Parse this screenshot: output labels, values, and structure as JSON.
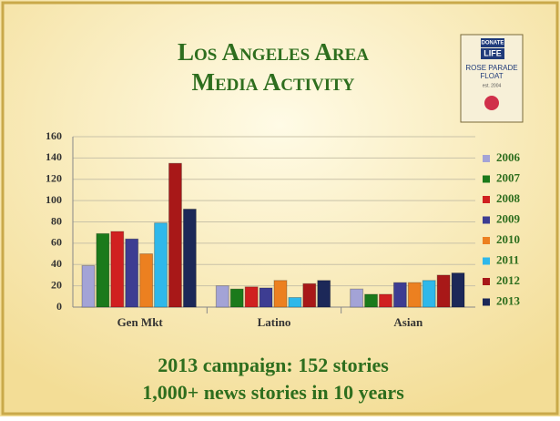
{
  "chart_data": {
    "type": "bar",
    "title": [
      "Los Angeles Area",
      "Media Activity"
    ],
    "categories": [
      "Gen Mkt",
      "Latino",
      "Asian"
    ],
    "series": [
      {
        "name": "2006",
        "color": "#a3a3d6",
        "values": [
          39,
          20,
          17
        ]
      },
      {
        "name": "2007",
        "color": "#1b7a1b",
        "values": [
          69,
          17,
          12
        ]
      },
      {
        "name": "2008",
        "color": "#d02020",
        "values": [
          71,
          19,
          12
        ]
      },
      {
        "name": "2009",
        "color": "#3d3d92",
        "values": [
          64,
          18,
          23
        ]
      },
      {
        "name": "2010",
        "color": "#ec8020",
        "values": [
          50,
          25,
          23
        ]
      },
      {
        "name": "2011",
        "color": "#2fb8ea",
        "values": [
          79,
          9,
          25
        ]
      },
      {
        "name": "2012",
        "color": "#a81818",
        "values": [
          135,
          22,
          30
        ]
      },
      {
        "name": "2013",
        "color": "#1c2858",
        "values": [
          92,
          25,
          32
        ]
      }
    ],
    "ylim": [
      0,
      160
    ],
    "yticks": [
      0,
      20,
      40,
      60,
      80,
      100,
      120,
      140,
      160
    ],
    "grid": true,
    "annotations": [
      "2013 campaign: 152 stories",
      "1,000+ news stories in 10 years"
    ]
  },
  "logo": {
    "lines": [
      "DONATE",
      "LIFE",
      "ROSE PARADE",
      "FLOAT",
      "est. 2004"
    ]
  }
}
